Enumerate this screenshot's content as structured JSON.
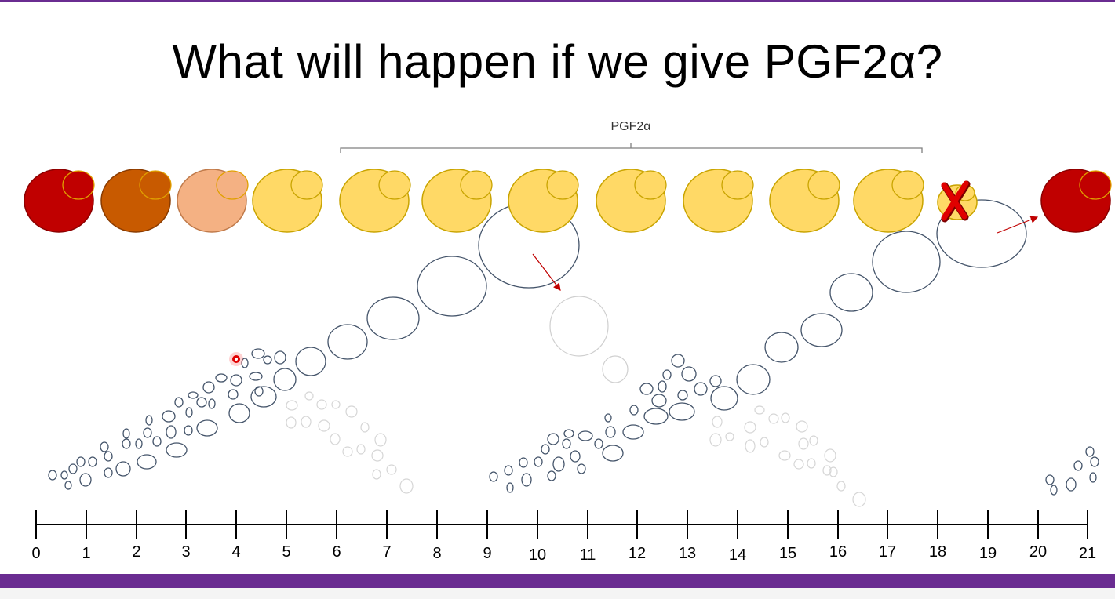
{
  "slide": {
    "title": "What will happen if we give PGF2α?"
  },
  "bracket": {
    "label": "PGF2α"
  },
  "timeline": {
    "ticks": [
      "0",
      "1",
      "2",
      "3",
      "4",
      "5",
      "6",
      "7",
      "8",
      "9",
      "10",
      "11",
      "12",
      "13",
      "14",
      "15",
      "16",
      "17",
      "18",
      "19",
      "20",
      "21"
    ]
  },
  "corpora_lutea": [
    {
      "day_position": "0",
      "color": "#c00000"
    },
    {
      "day_position": "1",
      "color": "#c85a00"
    },
    {
      "day_position": "2.5",
      "color": "#f4b183"
    },
    {
      "day_position": "4",
      "color": "#ffd966"
    },
    {
      "day_position": "6-17",
      "color": "#ffd966"
    },
    {
      "day_position": "18",
      "color": "#ffd966",
      "marker": "X"
    },
    {
      "day_position": "21",
      "color": "#c00000"
    }
  ],
  "colors": {
    "follicle_outline": "#44546a",
    "regressing_outline": "#d9d9d9",
    "arrow": "#c00000",
    "x_mark": "#e00000",
    "accent": "#6a2c91"
  },
  "icons": [
    "x-mark-icon",
    "arrow-icon",
    "laser-pointer-icon"
  ]
}
